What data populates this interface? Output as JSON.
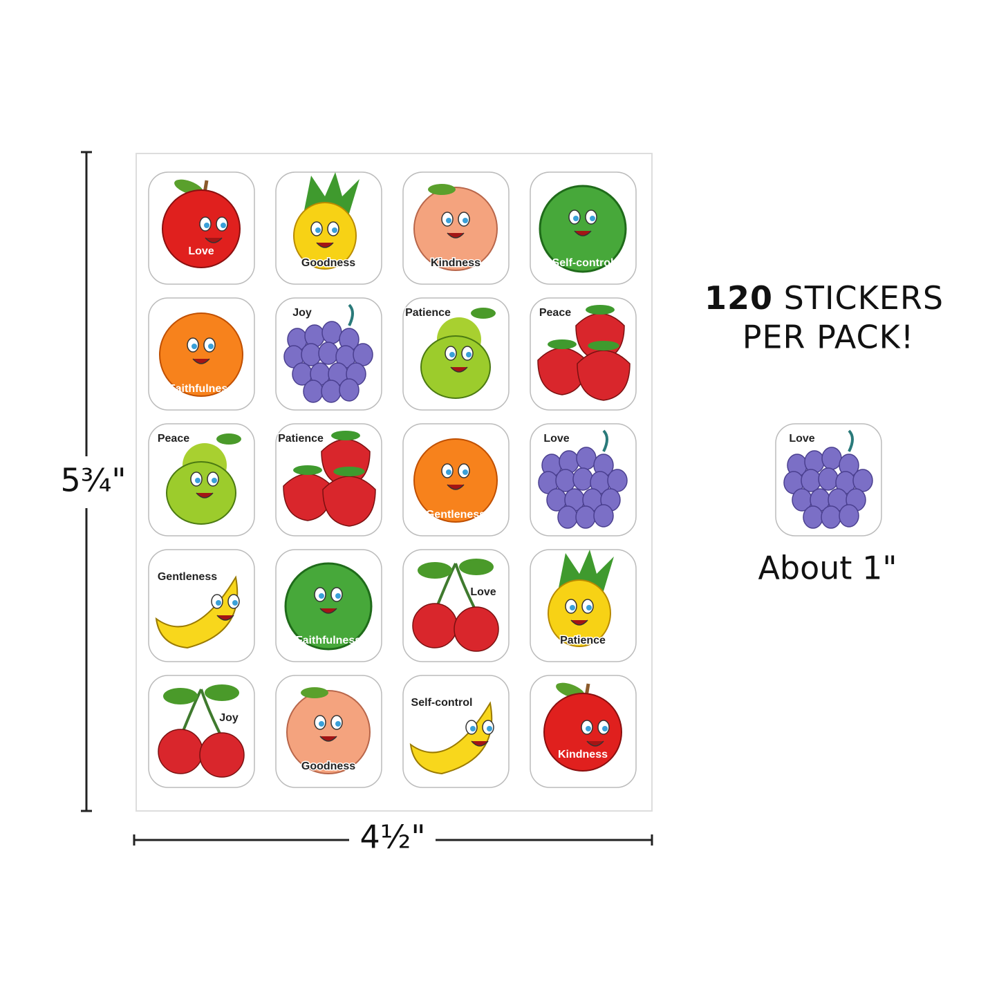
{
  "sheet": {
    "stickers": [
      "Love",
      "Goodness",
      "Kindness",
      "Self-control",
      "Faithfulness",
      "Joy",
      "Patience",
      "Peace",
      "Peace",
      "Patience",
      "Gentleness",
      "Love",
      "Gentleness",
      "Faithfulness",
      "Love",
      "Patience",
      "Joy",
      "Goodness",
      "Self-control",
      "Kindness"
    ]
  },
  "dimensions": {
    "height": "5¾\"",
    "width": "4½\""
  },
  "headline": {
    "count": "120",
    "line1": "STICKERS",
    "line2": "PER PACK!"
  },
  "sample": {
    "label": "Love",
    "caption": "About 1\""
  }
}
